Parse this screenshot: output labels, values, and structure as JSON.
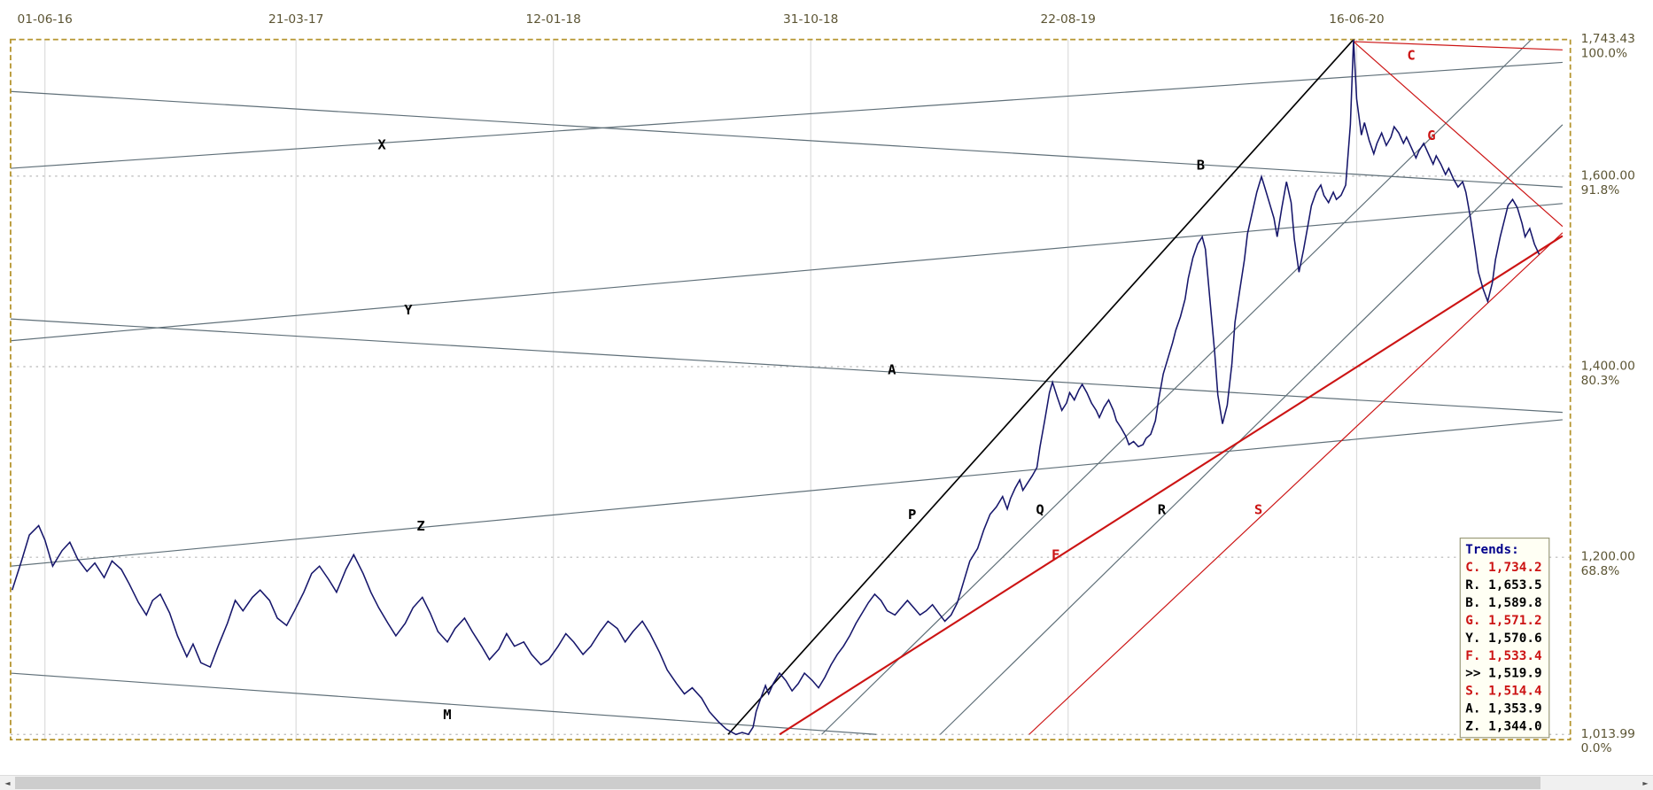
{
  "colors": {
    "background": "#ffffff",
    "border": "#b5952f",
    "grid_v": "#dcdcdc",
    "grid_h": "#b8b8b8",
    "price_line": "#16166b",
    "trend_gray": "#5f6f78",
    "trend_black": "#000000",
    "trend_red": "#cc1414",
    "axis_text": "#5c5534",
    "legend_bg": "#fffff4",
    "legend_border": "#9a9a7a",
    "legend_title": "#00008b"
  },
  "chart_data": {
    "type": "line",
    "title": "",
    "price_top": 1743.43,
    "price_bottom": 1013.99,
    "x_ticks": [
      {
        "label": "01-06-16",
        "f": 0.022
      },
      {
        "label": "21-03-17",
        "f": 0.183
      },
      {
        "label": "12-01-18",
        "f": 0.348
      },
      {
        "label": "31-10-18",
        "f": 0.513
      },
      {
        "label": "22-08-19",
        "f": 0.678
      },
      {
        "label": "16-06-20",
        "f": 0.863
      }
    ],
    "y_ticks": [
      {
        "label": "1,743.43",
        "pct": "100.0%",
        "price": 1743.43,
        "grid": false
      },
      {
        "label": "1,600.00",
        "pct": "91.8%",
        "price": 1600.0,
        "grid": true
      },
      {
        "label": "1,400.00",
        "pct": "80.3%",
        "price": 1400.0,
        "grid": true
      },
      {
        "label": "1,200.00",
        "pct": "68.8%",
        "price": 1200.0,
        "grid": true
      },
      {
        "label": "1,013.99",
        "pct": "0.0%",
        "price": 1013.99,
        "grid": true
      }
    ],
    "trend_lines": [
      {
        "id": "X",
        "color": "gray",
        "w": 1,
        "x": [
          0.0,
          0.995
        ],
        "p": [
          1608.2,
          1719.4
        ],
        "label": {
          "f": 0.238,
          "p": 1628.0,
          "color": "black"
        }
      },
      {
        "id": "B",
        "color": "gray",
        "w": 1,
        "x": [
          0.0,
          0.995
        ],
        "p": [
          1688.9,
          1588.6
        ],
        "label": {
          "f": 0.763,
          "p": 1607.0,
          "color": "black"
        }
      },
      {
        "id": "Y",
        "color": "gray",
        "w": 1,
        "x": [
          0.0,
          0.995
        ],
        "p": [
          1427.2,
          1571.2
        ],
        "label": {
          "f": 0.255,
          "p": 1455.0,
          "color": "black"
        }
      },
      {
        "id": "A",
        "color": "gray",
        "w": 1,
        "x": [
          0.0,
          0.995
        ],
        "p": [
          1450.1,
          1352.0
        ],
        "label": {
          "f": 0.565,
          "p": 1392.0,
          "color": "black"
        }
      },
      {
        "id": "Z",
        "color": "gray",
        "w": 1,
        "x": [
          0.0,
          0.995
        ],
        "p": [
          1190.6,
          1344.3
        ],
        "label": {
          "f": 0.263,
          "p": 1228.0,
          "color": "black"
        }
      },
      {
        "id": "M",
        "color": "gray",
        "w": 1,
        "x": [
          0.0,
          0.555
        ],
        "p": [
          1078.3,
          1014.0
        ],
        "label": {
          "f": 0.28,
          "p": 1030.0,
          "color": "black"
        }
      },
      {
        "id": "P",
        "color": "black",
        "w": 1.4,
        "x": [
          0.46,
          0.861
        ],
        "p": [
          1014.0,
          1743.4
        ],
        "label": {
          "f": 0.578,
          "p": 1240.0,
          "color": "black"
        }
      },
      {
        "id": "Q",
        "color": "gray",
        "w": 1,
        "x": [
          0.52,
          0.975
        ],
        "p": [
          1014.0,
          1743.4
        ],
        "label": {
          "f": 0.66,
          "p": 1245.0,
          "color": "black"
        }
      },
      {
        "id": "R",
        "color": "gray",
        "w": 1,
        "x": [
          0.596,
          0.995
        ],
        "p": [
          1014.0,
          1654.0
        ],
        "label": {
          "f": 0.738,
          "p": 1245.0,
          "color": "black"
        }
      },
      {
        "id": "S",
        "color": "red",
        "w": 1,
        "x": [
          0.653,
          0.995
        ],
        "p": [
          1014.0,
          1540.6
        ],
        "label": {
          "f": 0.8,
          "p": 1245.0,
          "color": "red"
        }
      },
      {
        "id": "F",
        "color": "red",
        "w": 1.8,
        "x": [
          0.493,
          0.995
        ],
        "p": [
          1014.0,
          1537.3
        ],
        "label": {
          "f": 0.67,
          "p": 1198.0,
          "color": "red"
        }
      },
      {
        "id": "C",
        "color": "red",
        "w": 1,
        "x": [
          0.861,
          0.995
        ],
        "p": [
          1741.2,
          1732.5
        ],
        "label": {
          "f": 0.898,
          "p": 1722.0,
          "color": "red"
        }
      },
      {
        "id": "G",
        "color": "red",
        "w": 1,
        "x": [
          0.861,
          0.995
        ],
        "p": [
          1741.2,
          1547.2
        ],
        "label": {
          "f": 0.911,
          "p": 1638.0,
          "color": "red"
        }
      }
    ],
    "price_series": [
      [
        0.001,
        1165.5
      ],
      [
        0.007,
        1196.1
      ],
      [
        0.012,
        1223.3
      ],
      [
        0.018,
        1233.1
      ],
      [
        0.022,
        1218.0
      ],
      [
        0.027,
        1190.6
      ],
      [
        0.033,
        1207.0
      ],
      [
        0.038,
        1215.7
      ],
      [
        0.043,
        1198.2
      ],
      [
        0.049,
        1185.1
      ],
      [
        0.054,
        1193.9
      ],
      [
        0.06,
        1178.6
      ],
      [
        0.065,
        1196.1
      ],
      [
        0.071,
        1187.3
      ],
      [
        0.076,
        1172.1
      ],
      [
        0.082,
        1152.4
      ],
      [
        0.087,
        1139.4
      ],
      [
        0.091,
        1154.6
      ],
      [
        0.096,
        1161.2
      ],
      [
        0.102,
        1141.5
      ],
      [
        0.107,
        1117.5
      ],
      [
        0.113,
        1095.7
      ],
      [
        0.117,
        1108.8
      ],
      [
        0.122,
        1089.2
      ],
      [
        0.128,
        1084.8
      ],
      [
        0.133,
        1106.6
      ],
      [
        0.139,
        1130.6
      ],
      [
        0.144,
        1154.6
      ],
      [
        0.149,
        1143.7
      ],
      [
        0.155,
        1157.9
      ],
      [
        0.16,
        1165.5
      ],
      [
        0.166,
        1154.6
      ],
      [
        0.171,
        1136.1
      ],
      [
        0.177,
        1128.4
      ],
      [
        0.182,
        1143.7
      ],
      [
        0.188,
        1163.3
      ],
      [
        0.193,
        1182.9
      ],
      [
        0.198,
        1190.6
      ],
      [
        0.204,
        1176.4
      ],
      [
        0.209,
        1163.3
      ],
      [
        0.215,
        1187.3
      ],
      [
        0.22,
        1202.6
      ],
      [
        0.226,
        1182.9
      ],
      [
        0.231,
        1163.3
      ],
      [
        0.236,
        1147.0
      ],
      [
        0.242,
        1130.6
      ],
      [
        0.247,
        1117.5
      ],
      [
        0.253,
        1130.6
      ],
      [
        0.258,
        1147.0
      ],
      [
        0.264,
        1157.9
      ],
      [
        0.269,
        1141.5
      ],
      [
        0.274,
        1121.9
      ],
      [
        0.28,
        1111.0
      ],
      [
        0.285,
        1125.2
      ],
      [
        0.291,
        1136.1
      ],
      [
        0.296,
        1121.9
      ],
      [
        0.302,
        1106.6
      ],
      [
        0.307,
        1092.5
      ],
      [
        0.313,
        1103.4
      ],
      [
        0.318,
        1119.7
      ],
      [
        0.323,
        1106.6
      ],
      [
        0.329,
        1111.0
      ],
      [
        0.334,
        1097.9
      ],
      [
        0.34,
        1087.0
      ],
      [
        0.345,
        1092.5
      ],
      [
        0.351,
        1106.6
      ],
      [
        0.356,
        1119.7
      ],
      [
        0.361,
        1111.0
      ],
      [
        0.367,
        1097.9
      ],
      [
        0.372,
        1106.6
      ],
      [
        0.378,
        1121.9
      ],
      [
        0.383,
        1132.8
      ],
      [
        0.389,
        1125.2
      ],
      [
        0.394,
        1111.0
      ],
      [
        0.399,
        1121.9
      ],
      [
        0.405,
        1132.8
      ],
      [
        0.41,
        1119.7
      ],
      [
        0.416,
        1100.1
      ],
      [
        0.421,
        1081.6
      ],
      [
        0.427,
        1067.4
      ],
      [
        0.432,
        1056.5
      ],
      [
        0.437,
        1063.0
      ],
      [
        0.443,
        1052.1
      ],
      [
        0.448,
        1037.9
      ],
      [
        0.454,
        1027.0
      ],
      [
        0.459,
        1019.4
      ],
      [
        0.465,
        1014.0
      ],
      [
        0.469,
        1016.1
      ],
      [
        0.473,
        1014.0
      ],
      [
        0.476,
        1021.6
      ],
      [
        0.478,
        1037.9
      ],
      [
        0.481,
        1052.1
      ],
      [
        0.484,
        1065.2
      ],
      [
        0.486,
        1056.5
      ],
      [
        0.489,
        1067.4
      ],
      [
        0.493,
        1078.3
      ],
      [
        0.497,
        1070.6
      ],
      [
        0.501,
        1059.7
      ],
      [
        0.505,
        1067.4
      ],
      [
        0.509,
        1078.3
      ],
      [
        0.514,
        1070.6
      ],
      [
        0.518,
        1063.0
      ],
      [
        0.522,
        1073.9
      ],
      [
        0.526,
        1087.0
      ],
      [
        0.53,
        1097.9
      ],
      [
        0.534,
        1106.6
      ],
      [
        0.538,
        1117.5
      ],
      [
        0.542,
        1130.6
      ],
      [
        0.546,
        1141.5
      ],
      [
        0.55,
        1152.4
      ],
      [
        0.554,
        1161.2
      ],
      [
        0.558,
        1154.6
      ],
      [
        0.562,
        1143.7
      ],
      [
        0.567,
        1139.4
      ],
      [
        0.571,
        1147.0
      ],
      [
        0.575,
        1154.6
      ],
      [
        0.579,
        1147.0
      ],
      [
        0.583,
        1139.4
      ],
      [
        0.587,
        1143.7
      ],
      [
        0.591,
        1150.2
      ],
      [
        0.595,
        1141.5
      ],
      [
        0.599,
        1132.8
      ],
      [
        0.603,
        1139.4
      ],
      [
        0.607,
        1152.4
      ],
      [
        0.611,
        1174.2
      ],
      [
        0.615,
        1196.1
      ],
      [
        0.62,
        1209.2
      ],
      [
        0.624,
        1228.8
      ],
      [
        0.628,
        1245.1
      ],
      [
        0.632,
        1252.8
      ],
      [
        0.636,
        1263.7
      ],
      [
        0.639,
        1250.6
      ],
      [
        0.641,
        1261.5
      ],
      [
        0.644,
        1272.4
      ],
      [
        0.647,
        1281.1
      ],
      [
        0.649,
        1270.2
      ],
      [
        0.652,
        1277.8
      ],
      [
        0.655,
        1285.5
      ],
      [
        0.658,
        1294.2
      ],
      [
        0.66,
        1316.0
      ],
      [
        0.663,
        1343.3
      ],
      [
        0.666,
        1372.7
      ],
      [
        0.668,
        1383.6
      ],
      [
        0.671,
        1368.3
      ],
      [
        0.674,
        1354.2
      ],
      [
        0.677,
        1361.8
      ],
      [
        0.679,
        1372.7
      ],
      [
        0.682,
        1365.1
      ],
      [
        0.685,
        1376.0
      ],
      [
        0.687,
        1381.4
      ],
      [
        0.69,
        1372.7
      ],
      [
        0.693,
        1361.8
      ],
      [
        0.696,
        1354.2
      ],
      [
        0.698,
        1346.6
      ],
      [
        0.701,
        1357.5
      ],
      [
        0.704,
        1365.1
      ],
      [
        0.707,
        1354.2
      ],
      [
        0.709,
        1343.3
      ],
      [
        0.712,
        1335.6
      ],
      [
        0.715,
        1326.9
      ],
      [
        0.717,
        1318.2
      ],
      [
        0.72,
        1321.5
      ],
      [
        0.723,
        1316.0
      ],
      [
        0.726,
        1318.2
      ],
      [
        0.728,
        1324.7
      ],
      [
        0.731,
        1329.1
      ],
      [
        0.734,
        1343.3
      ],
      [
        0.736,
        1365.1
      ],
      [
        0.739,
        1392.3
      ],
      [
        0.742,
        1408.7
      ],
      [
        0.745,
        1425.0
      ],
      [
        0.747,
        1438.1
      ],
      [
        0.75,
        1452.3
      ],
      [
        0.753,
        1470.8
      ],
      [
        0.755,
        1492.6
      ],
      [
        0.758,
        1514.4
      ],
      [
        0.761,
        1528.6
      ],
      [
        0.764,
        1536.3
      ],
      [
        0.766,
        1523.2
      ],
      [
        0.769,
        1468.6
      ],
      [
        0.772,
        1414.1
      ],
      [
        0.774,
        1370.5
      ],
      [
        0.777,
        1340.0
      ],
      [
        0.78,
        1359.6
      ],
      [
        0.783,
        1403.2
      ],
      [
        0.785,
        1446.8
      ],
      [
        0.788,
        1479.5
      ],
      [
        0.791,
        1512.2
      ],
      [
        0.793,
        1539.5
      ],
      [
        0.796,
        1561.3
      ],
      [
        0.799,
        1583.1
      ],
      [
        0.802,
        1599.5
      ],
      [
        0.804,
        1588.6
      ],
      [
        0.807,
        1572.2
      ],
      [
        0.81,
        1555.8
      ],
      [
        0.812,
        1536.3
      ],
      [
        0.815,
        1566.8
      ],
      [
        0.818,
        1594.0
      ],
      [
        0.821,
        1572.2
      ],
      [
        0.823,
        1534.1
      ],
      [
        0.826,
        1499.2
      ],
      [
        0.829,
        1523.2
      ],
      [
        0.832,
        1550.4
      ],
      [
        0.834,
        1568.9
      ],
      [
        0.837,
        1583.1
      ],
      [
        0.84,
        1590.7
      ],
      [
        0.842,
        1579.9
      ],
      [
        0.845,
        1572.2
      ],
      [
        0.848,
        1583.1
      ],
      [
        0.85,
        1575.5
      ],
      [
        0.853,
        1579.9
      ],
      [
        0.856,
        1590.7
      ],
      [
        0.859,
        1654.0
      ],
      [
        0.861,
        1743.4
      ],
      [
        0.863,
        1681.3
      ],
      [
        0.866,
        1643.1
      ],
      [
        0.868,
        1656.2
      ],
      [
        0.871,
        1637.7
      ],
      [
        0.874,
        1623.5
      ],
      [
        0.876,
        1634.4
      ],
      [
        0.879,
        1645.3
      ],
      [
        0.882,
        1632.2
      ],
      [
        0.885,
        1640.9
      ],
      [
        0.887,
        1651.8
      ],
      [
        0.89,
        1645.3
      ],
      [
        0.893,
        1634.4
      ],
      [
        0.895,
        1640.9
      ],
      [
        0.898,
        1630.0
      ],
      [
        0.901,
        1619.1
      ],
      [
        0.903,
        1626.7
      ],
      [
        0.906,
        1634.4
      ],
      [
        0.909,
        1623.5
      ],
      [
        0.912,
        1612.6
      ],
      [
        0.914,
        1621.3
      ],
      [
        0.917,
        1612.6
      ],
      [
        0.92,
        1601.7
      ],
      [
        0.922,
        1608.2
      ],
      [
        0.925,
        1597.3
      ],
      [
        0.928,
        1588.6
      ],
      [
        0.931,
        1594.0
      ],
      [
        0.933,
        1583.1
      ],
      [
        0.936,
        1555.8
      ],
      [
        0.939,
        1523.2
      ],
      [
        0.941,
        1499.2
      ],
      [
        0.944,
        1481.7
      ],
      [
        0.947,
        1468.6
      ],
      [
        0.95,
        1488.2
      ],
      [
        0.952,
        1512.2
      ],
      [
        0.955,
        1536.3
      ],
      [
        0.958,
        1555.8
      ],
      [
        0.96,
        1568.9
      ],
      [
        0.963,
        1575.5
      ],
      [
        0.966,
        1566.8
      ],
      [
        0.969,
        1550.4
      ],
      [
        0.971,
        1536.3
      ],
      [
        0.974,
        1545.0
      ],
      [
        0.977,
        1528.6
      ],
      [
        0.98,
        1517.7
      ]
    ]
  },
  "legend": {
    "title": "Trends:",
    "rows": [
      {
        "label": "C.",
        "value": "1,734.2",
        "color": "red"
      },
      {
        "label": "R.",
        "value": "1,653.5",
        "color": "black"
      },
      {
        "label": "B.",
        "value": "1,589.8",
        "color": "black"
      },
      {
        "label": "G.",
        "value": "1,571.2",
        "color": "red"
      },
      {
        "label": "Y.",
        "value": "1,570.6",
        "color": "black"
      },
      {
        "label": "F.",
        "value": "1,533.4",
        "color": "red"
      },
      {
        "label": ">>",
        "value": "1,519.9",
        "color": "black"
      },
      {
        "label": "S.",
        "value": "1,514.4",
        "color": "red"
      },
      {
        "label": "A.",
        "value": "1,353.9",
        "color": "black"
      },
      {
        "label": "Z.",
        "value": "1,344.0",
        "color": "black"
      }
    ]
  },
  "scrollbar": {
    "left_arrow": "◄",
    "right_arrow": "►"
  }
}
